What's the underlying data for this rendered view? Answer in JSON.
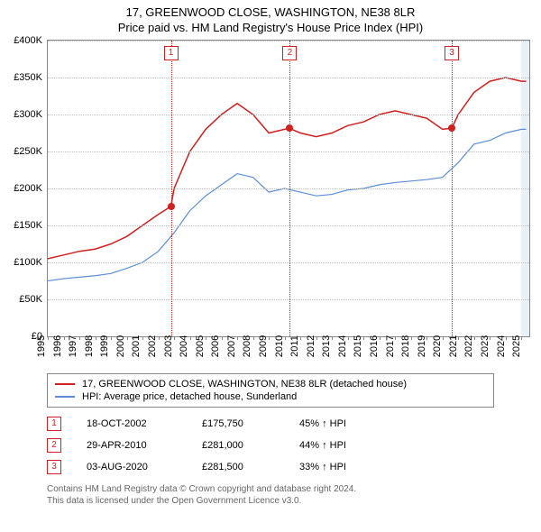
{
  "title_line1": "17, GREENWOOD CLOSE, WASHINGTON, NE38 8LR",
  "title_line2": "Price paid vs. HM Land Registry's House Price Index (HPI)",
  "chart": {
    "type": "line",
    "background_color": "#ffffff",
    "border_color": "#888888",
    "grid_color": "#bfbfbf",
    "highlight_band_color": "#e8f0f8",
    "marker_line_color": "#d02020",
    "point_color": "#d02020",
    "x_min": 1995,
    "x_max": 2025.5,
    "y_min": 0,
    "y_max": 400000,
    "y_ticks": [
      0,
      50000,
      100000,
      150000,
      200000,
      250000,
      300000,
      350000,
      400000
    ],
    "y_tick_labels": [
      "£0",
      "£50K",
      "£100K",
      "£150K",
      "£200K",
      "£250K",
      "£300K",
      "£350K",
      "£400K"
    ],
    "x_ticks": [
      1995,
      1996,
      1997,
      1998,
      1999,
      2000,
      2001,
      2002,
      2003,
      2004,
      2005,
      2006,
      2007,
      2008,
      2009,
      2010,
      2011,
      2012,
      2013,
      2014,
      2015,
      2016,
      2017,
      2018,
      2019,
      2020,
      2021,
      2022,
      2023,
      2024,
      2025
    ],
    "highlight_year": 2025,
    "series": [
      {
        "name": "17, GREENWOOD CLOSE, WASHINGTON, NE38 8LR (detached house)",
        "color": "#d02020",
        "width": 1.5,
        "x": [
          1995,
          1996,
          1997,
          1998,
          1999,
          2000,
          2001,
          2002,
          2002.8,
          2003,
          2004,
          2005,
          2006,
          2007,
          2008,
          2009,
          2010,
          2010.33,
          2011,
          2012,
          2013,
          2014,
          2015,
          2016,
          2017,
          2018,
          2019,
          2020,
          2020.59,
          2021,
          2022,
          2023,
          2024,
          2025,
          2025.3
        ],
        "y": [
          105000,
          110000,
          115000,
          118000,
          125000,
          135000,
          150000,
          165000,
          175750,
          200000,
          250000,
          280000,
          300000,
          315000,
          300000,
          275000,
          280000,
          281000,
          275000,
          270000,
          275000,
          285000,
          290000,
          300000,
          305000,
          300000,
          295000,
          280000,
          281500,
          300000,
          330000,
          345000,
          350000,
          345000,
          345000
        ]
      },
      {
        "name": "HPI: Average price, detached house, Sunderland",
        "color": "#5b8fd6",
        "width": 1.2,
        "x": [
          1995,
          1996,
          1997,
          1998,
          1999,
          2000,
          2001,
          2002,
          2003,
          2004,
          2005,
          2006,
          2007,
          2008,
          2009,
          2010,
          2011,
          2012,
          2013,
          2014,
          2015,
          2016,
          2017,
          2018,
          2019,
          2020,
          2021,
          2022,
          2023,
          2024,
          2025,
          2025.3
        ],
        "y": [
          75000,
          78000,
          80000,
          82000,
          85000,
          92000,
          100000,
          115000,
          140000,
          170000,
          190000,
          205000,
          220000,
          215000,
          195000,
          200000,
          195000,
          190000,
          192000,
          198000,
          200000,
          205000,
          208000,
          210000,
          212000,
          215000,
          235000,
          260000,
          265000,
          275000,
          280000,
          280000
        ]
      }
    ],
    "sale_markers": [
      {
        "n": "1",
        "x": 2002.8,
        "y": 175750
      },
      {
        "n": "2",
        "x": 2010.33,
        "y": 281000
      },
      {
        "n": "3",
        "x": 2020.59,
        "y": 281500
      }
    ]
  },
  "legend": [
    {
      "color": "#d02020",
      "label": "17, GREENWOOD CLOSE, WASHINGTON, NE38 8LR (detached house)"
    },
    {
      "color": "#5b8fd6",
      "label": "HPI: Average price, detached house, Sunderland"
    }
  ],
  "sales": [
    {
      "n": "1",
      "date": "18-OCT-2002",
      "price": "£175,750",
      "pct": "45% ↑ HPI"
    },
    {
      "n": "2",
      "date": "29-APR-2010",
      "price": "£281,000",
      "pct": "44% ↑ HPI"
    },
    {
      "n": "3",
      "date": "03-AUG-2020",
      "price": "£281,500",
      "pct": "33% ↑ HPI"
    }
  ],
  "footer_line1": "Contains HM Land Registry data © Crown copyright and database right 2024.",
  "footer_line2": "This data is licensed under the Open Government Licence v3.0."
}
